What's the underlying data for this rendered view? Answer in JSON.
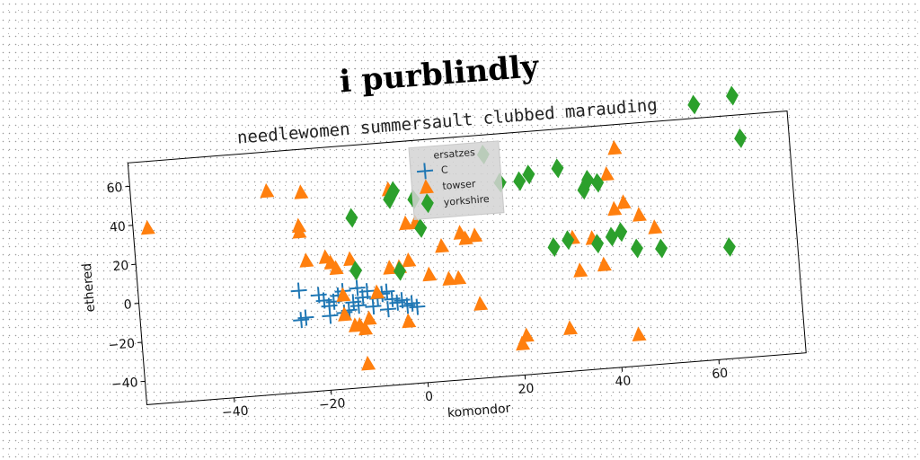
{
  "chart_data": {
    "type": "scatter",
    "title": "i purblindly",
    "subtitle": "needlewomen summersault clubbed marauding",
    "xlabel": "komondor",
    "ylabel": "ethered",
    "xlim": [
      -58,
      78
    ],
    "ylim": [
      -52,
      72
    ],
    "xticks": [
      -40,
      -20,
      0,
      20,
      40,
      60
    ],
    "yticks": [
      -40,
      -20,
      0,
      20,
      40,
      60
    ],
    "legend": {
      "title": "ersatzes",
      "placement": "top-center"
    },
    "grid": false,
    "series": [
      {
        "name": "C",
        "marker": "plus",
        "color": "#1f77b4",
        "points": [
          [
            -25,
            0
          ],
          [
            -25,
            -15
          ],
          [
            -24,
            -14
          ],
          [
            -21,
            -3
          ],
          [
            -20,
            -6
          ],
          [
            -19,
            -9
          ],
          [
            -18,
            -7
          ],
          [
            -17,
            -4
          ],
          [
            -16,
            -2
          ],
          [
            -15,
            -12
          ],
          [
            -14,
            -8
          ],
          [
            -13,
            -10
          ],
          [
            -12,
            -6
          ],
          [
            -11,
            -3
          ],
          [
            -10,
            -11
          ],
          [
            -9,
            -7
          ],
          [
            -8,
            -5
          ],
          [
            -7,
            -4
          ],
          [
            -6,
            -8
          ],
          [
            -5,
            -10
          ],
          [
            -4,
            -9
          ],
          [
            -3,
            -12
          ],
          [
            -2,
            -11
          ],
          [
            -1,
            -13
          ],
          [
            -7,
            -13
          ],
          [
            -16,
            -13
          ],
          [
            -19,
            -14
          ],
          [
            -13,
            -1
          ]
        ]
      },
      {
        "name": "towser",
        "marker": "triangle",
        "color": "#ff7f0e",
        "points": [
          [
            -55,
            38
          ],
          [
            -30,
            52
          ],
          [
            -23,
            50
          ],
          [
            -24,
            33
          ],
          [
            -24,
            30
          ],
          [
            -23,
            15
          ],
          [
            -19,
            16
          ],
          [
            -18,
            13
          ],
          [
            -17,
            10
          ],
          [
            -14,
            14
          ],
          [
            -16,
            -14
          ],
          [
            -14,
            -20
          ],
          [
            -12,
            -22
          ],
          [
            -13,
            -20
          ],
          [
            -12,
            -40
          ],
          [
            -5,
            48
          ],
          [
            -2,
            30
          ],
          [
            0,
            30
          ],
          [
            -2,
            11
          ],
          [
            -4,
            8
          ],
          [
            -6,
            8
          ],
          [
            2,
            3
          ],
          [
            5,
            17
          ],
          [
            6,
            0
          ],
          [
            8,
            0
          ],
          [
            9,
            23
          ],
          [
            10,
            20
          ],
          [
            12,
            21
          ],
          [
            12,
            -14
          ],
          [
            -3,
            -20
          ],
          [
            -9,
            -4
          ],
          [
            -16,
            -4
          ],
          [
            -11,
            -17
          ],
          [
            20,
            -36
          ],
          [
            21,
            -32
          ],
          [
            30,
            -30
          ],
          [
            32,
            16
          ],
          [
            33,
            -1
          ],
          [
            36,
            15
          ],
          [
            38,
            1
          ],
          [
            41,
            29
          ],
          [
            42,
            60
          ],
          [
            43,
            32
          ],
          [
            46,
            25
          ],
          [
            49,
            18
          ],
          [
            40,
            47
          ],
          [
            44,
            -36
          ]
        ]
      },
      {
        "name": "yorkshire",
        "marker": "diamond",
        "color": "#2ca02c",
        "points": [
          [
            -13,
            35
          ],
          [
            -13,
            8
          ],
          [
            -5,
            43
          ],
          [
            -4,
            47
          ],
          [
            -4,
            6
          ],
          [
            0,
            42
          ],
          [
            1,
            27
          ],
          [
            15,
            62
          ],
          [
            18,
            47
          ],
          [
            22,
            47
          ],
          [
            24,
            50
          ],
          [
            28,
            12
          ],
          [
            30,
            52
          ],
          [
            31,
            15
          ],
          [
            35,
            40
          ],
          [
            36,
            45
          ],
          [
            37,
            12
          ],
          [
            38,
            43
          ],
          [
            40,
            15
          ],
          [
            42,
            17
          ],
          [
            45,
            8
          ],
          [
            50,
            7
          ],
          [
            59,
            79
          ],
          [
            64,
            5
          ],
          [
            67,
            82
          ],
          [
            68,
            60
          ]
        ]
      }
    ]
  }
}
